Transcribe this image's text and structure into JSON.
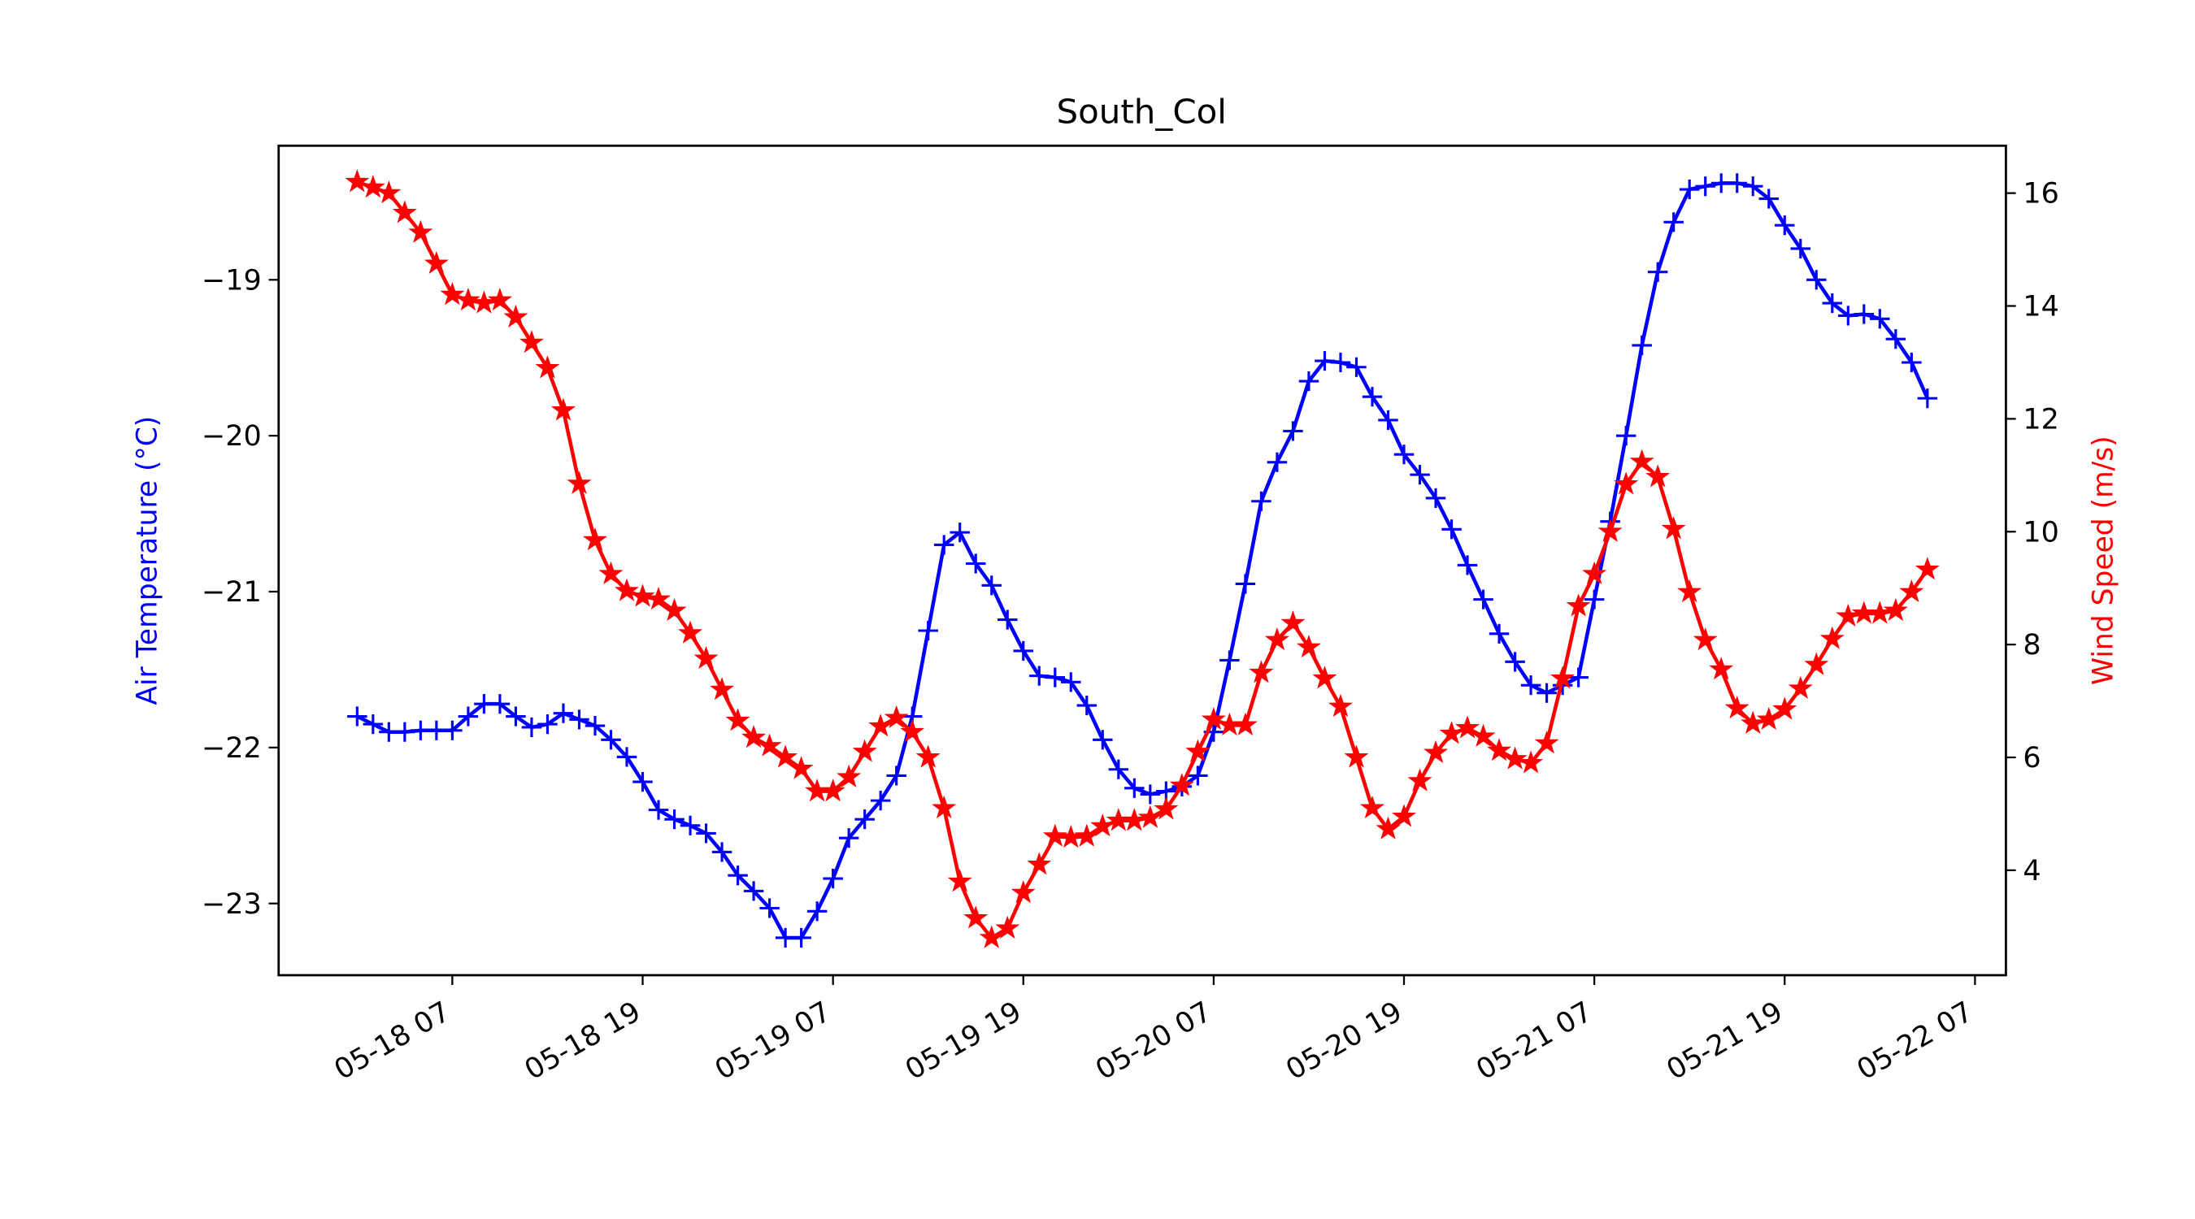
{
  "chart_data": {
    "type": "line",
    "title": "South_Col",
    "ylabel": "Air Temperature (°C)",
    "y2label": "Wind Speed (m/s)",
    "x": [
      "05-18 01",
      "05-18 02",
      "05-18 03",
      "05-18 04",
      "05-18 05",
      "05-18 06",
      "05-18 07",
      "05-18 08",
      "05-18 09",
      "05-18 10",
      "05-18 11",
      "05-18 12",
      "05-18 13",
      "05-18 14",
      "05-18 15",
      "05-18 16",
      "05-18 17",
      "05-18 18",
      "05-18 19",
      "05-18 20",
      "05-18 21",
      "05-18 22",
      "05-18 23",
      "05-19 00",
      "05-19 01",
      "05-19 02",
      "05-19 03",
      "05-19 04",
      "05-19 05",
      "05-19 06",
      "05-19 07",
      "05-19 08",
      "05-19 09",
      "05-19 10",
      "05-19 11",
      "05-19 12",
      "05-19 13",
      "05-19 14",
      "05-19 15",
      "05-19 16",
      "05-19 17",
      "05-19 18",
      "05-19 19",
      "05-19 20",
      "05-19 21",
      "05-19 22",
      "05-19 23",
      "05-20 00",
      "05-20 01",
      "05-20 02",
      "05-20 03",
      "05-20 04",
      "05-20 05",
      "05-20 06",
      "05-20 07",
      "05-20 08",
      "05-20 09",
      "05-20 10",
      "05-20 11",
      "05-20 12",
      "05-20 13",
      "05-20 14",
      "05-20 15",
      "05-20 16",
      "05-20 17",
      "05-20 18",
      "05-20 19",
      "05-20 20",
      "05-20 21",
      "05-20 22",
      "05-20 23",
      "05-21 00",
      "05-21 01",
      "05-21 02",
      "05-21 03",
      "05-21 04",
      "05-21 05",
      "05-21 06",
      "05-21 07",
      "05-21 08",
      "05-21 09",
      "05-21 10",
      "05-21 11",
      "05-21 12",
      "05-21 13",
      "05-21 14",
      "05-21 15",
      "05-21 16",
      "05-21 17",
      "05-21 18",
      "05-21 19",
      "05-21 20",
      "05-21 21",
      "05-21 22",
      "05-21 23",
      "05-22 00",
      "05-22 01",
      "05-22 02",
      "05-22 03",
      "05-22 04"
    ],
    "series": [
      {
        "color": "#0000ff",
        "marker": "+",
        "axis": "y",
        "values": [
          -21.8,
          -21.85,
          -21.9,
          -21.9,
          -21.89,
          -21.89,
          -21.89,
          -21.8,
          -21.72,
          -21.72,
          -21.8,
          -21.87,
          -21.85,
          -21.78,
          -21.82,
          -21.86,
          -21.95,
          -22.06,
          -22.22,
          -22.4,
          -22.46,
          -22.5,
          -22.55,
          -22.67,
          -22.82,
          -22.92,
          -23.03,
          -23.22,
          -23.22,
          -23.05,
          -22.84,
          -22.58,
          -22.46,
          -22.34,
          -22.18,
          -21.8,
          -21.25,
          -20.7,
          -20.62,
          -20.82,
          -20.96,
          -21.18,
          -21.38,
          -21.54,
          -21.55,
          -21.58,
          -21.73,
          -21.95,
          -22.14,
          -22.26,
          -22.3,
          -22.28,
          -22.25,
          -22.18,
          -21.9,
          -21.44,
          -20.95,
          -20.42,
          -20.17,
          -19.97,
          -19.65,
          -19.52,
          -19.53,
          -19.56,
          -19.75,
          -19.9,
          -20.12,
          -20.25,
          -20.4,
          -20.6,
          -20.83,
          -21.05,
          -21.27,
          -21.45,
          -21.6,
          -21.65,
          -21.6,
          -21.55,
          -21.05,
          -20.55,
          -20.0,
          -19.42,
          -18.95,
          -18.63,
          -18.42,
          -18.4,
          -18.38,
          -18.38,
          -18.4,
          -18.48,
          -18.65,
          -18.8,
          -19.0,
          -19.15,
          -19.23,
          -19.22,
          -19.25,
          -19.38,
          -19.53,
          -19.76
        ]
      },
      {
        "color": "#ff0000",
        "marker": "*",
        "axis": "y2",
        "values": [
          16.2,
          16.1,
          16.0,
          15.65,
          15.3,
          14.75,
          14.2,
          14.1,
          14.05,
          14.1,
          13.8,
          13.35,
          12.9,
          12.15,
          10.85,
          9.85,
          9.25,
          8.95,
          8.85,
          8.8,
          8.6,
          8.2,
          7.75,
          7.2,
          6.65,
          6.35,
          6.2,
          6.0,
          5.8,
          5.4,
          5.4,
          5.65,
          6.1,
          6.55,
          6.7,
          6.45,
          6.0,
          5.1,
          3.8,
          3.15,
          2.8,
          2.97,
          3.6,
          4.1,
          4.6,
          4.58,
          4.6,
          4.78,
          4.88,
          4.88,
          4.93,
          5.08,
          5.5,
          6.1,
          6.67,
          6.57,
          6.57,
          7.5,
          8.08,
          8.38,
          7.95,
          7.4,
          6.9,
          6.0,
          5.1,
          4.73,
          4.95,
          5.58,
          6.08,
          6.42,
          6.52,
          6.37,
          6.12,
          5.97,
          5.9,
          6.25,
          7.4,
          8.68,
          9.25,
          10.0,
          10.84,
          11.24,
          10.97,
          10.05,
          8.93,
          8.08,
          7.56,
          6.87,
          6.6,
          6.67,
          6.85,
          7.22,
          7.64,
          8.1,
          8.5,
          8.55,
          8.55,
          8.6,
          8.93,
          9.33
        ]
      }
    ],
    "xlim": [
      "05-17 20:03",
      "05-22 08:57"
    ],
    "xticks": [
      "05-18 07",
      "05-18 19",
      "05-19 07",
      "05-19 19",
      "05-20 07",
      "05-20 19",
      "05-21 07",
      "05-21 19",
      "05-22 07"
    ],
    "ylim": [
      -23.46,
      -18.14
    ],
    "yticks": [
      {
        "value": -23,
        "label": "−23"
      },
      {
        "value": -22,
        "label": "−22"
      },
      {
        "value": -21,
        "label": "−21"
      },
      {
        "value": -20,
        "label": "−20"
      },
      {
        "value": -19,
        "label": "−19"
      }
    ],
    "y2lim": [
      2.14,
      16.84
    ],
    "y2ticks": [
      4,
      6,
      8,
      10,
      12,
      14,
      16
    ],
    "ylabel_color": "#0000ff",
    "y2label_color": "#ff0000"
  }
}
